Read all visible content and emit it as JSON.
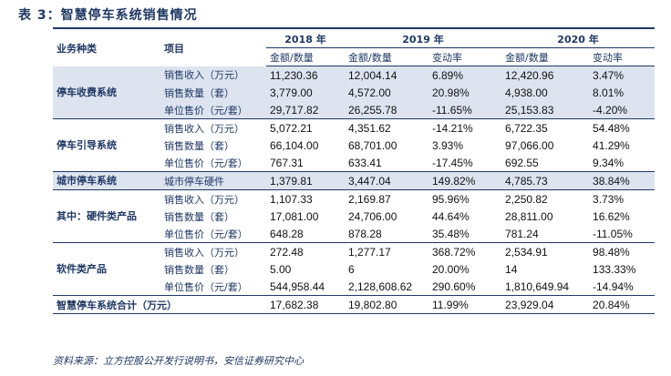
{
  "title": "表 3：智慧停车系统销售情况",
  "header": {
    "category": "业务种类",
    "item": "项目",
    "years": [
      "2018 年",
      "2019 年",
      "2020 年"
    ],
    "sub": [
      "金额/数量",
      "金额/数量",
      "变动率",
      "金额/数量",
      "变动率"
    ]
  },
  "groups": [
    {
      "category": "停车收费系统",
      "shaded": true,
      "rows": [
        {
          "item": "销售收入（万元）",
          "v": [
            "11,230.36",
            "12,004.14",
            "6.89%",
            "12,420.96",
            "3.47%"
          ]
        },
        {
          "item": "销售数量（套）",
          "v": [
            "3,779.00",
            "4,572.00",
            "20.98%",
            "4,938.00",
            "8.01%"
          ]
        },
        {
          "item": "单位售价（元/套）",
          "v": [
            "29,717.82",
            "26,255.78",
            "-11.65%",
            "25,153.83",
            "-4.20%"
          ]
        }
      ]
    },
    {
      "category": "停车引导系统",
      "shaded": false,
      "rows": [
        {
          "item": "销售收入（万元）",
          "v": [
            "5,072.21",
            "4,351.62",
            "-14.21%",
            "6,722.35",
            "54.48%"
          ]
        },
        {
          "item": "销售数量（套）",
          "v": [
            "66,104.00",
            "68,701.00",
            "3.93%",
            "97,066.00",
            "41.29%"
          ]
        },
        {
          "item": "单位售价（元/套）",
          "v": [
            "767.31",
            "633.41",
            "-17.45%",
            "692.55",
            "9.34%"
          ]
        }
      ]
    },
    {
      "category": "城市停车系统",
      "shaded": true,
      "rows": [
        {
          "item": "城市停车硬件",
          "v": [
            "1,379.81",
            "3,447.04",
            "149.82%",
            "4,785.73",
            "38.84%"
          ]
        }
      ]
    },
    {
      "category": "其中：硬件类产品",
      "shaded": false,
      "rows": [
        {
          "item": "销售收入（万元）",
          "v": [
            "1,107.33",
            "2,169.87",
            "95.96%",
            "2,250.82",
            "3.73%"
          ]
        },
        {
          "item": "销售数量（套）",
          "v": [
            "17,081.00",
            "24,706.00",
            "44.64%",
            "28,811.00",
            "16.62%"
          ]
        },
        {
          "item": "单位售价（元/套）",
          "v": [
            "648.28",
            "878.28",
            "35.48%",
            "781.24",
            "-11.05%"
          ]
        }
      ]
    },
    {
      "category": "软件类产品",
      "shaded": false,
      "rows": [
        {
          "item": "销售收入（万元）",
          "v": [
            "272.48",
            "1,277.17",
            "368.72%",
            "2,534.91",
            "98.48%"
          ]
        },
        {
          "item": "销售数量（套）",
          "v": [
            "5.00",
            "6",
            "20.00%",
            "14",
            "133.33%"
          ]
        },
        {
          "item": "单位售价（元/套）",
          "v": [
            "544,958.44",
            "2,128,608.62",
            "290.60%",
            "1,810,649.94",
            "-14.94%"
          ]
        }
      ]
    }
  ],
  "total": {
    "label": "智慧停车系统合计（万元）",
    "v": [
      "17,682.38",
      "19,802.80",
      "11.99%",
      "23,929.04",
      "20.84%"
    ]
  },
  "source": "资料来源：立方控股公开发行说明书，安信证券研究中心"
}
